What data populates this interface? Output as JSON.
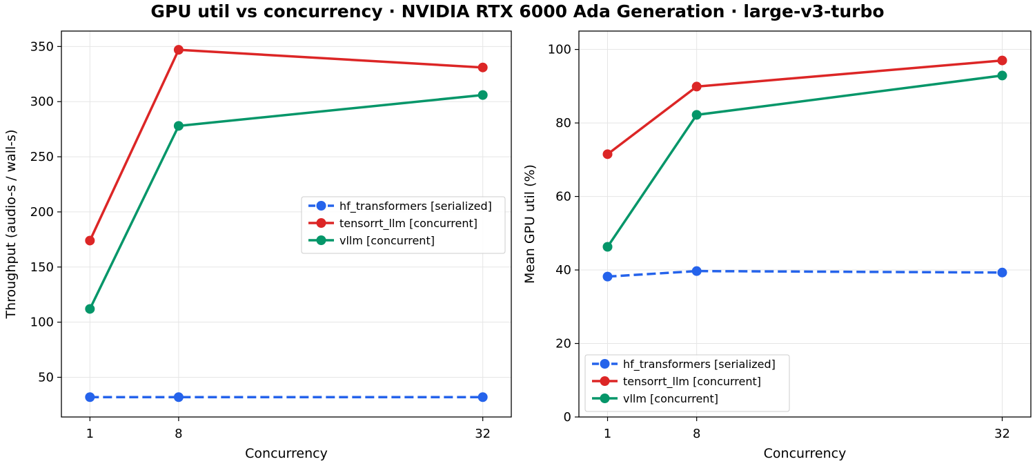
{
  "title": "GPU util vs concurrency · NVIDIA RTX 6000 Ada Generation · large-v3-turbo",
  "chart_data": [
    {
      "type": "line",
      "xlabel": "Concurrency",
      "ylabel": "Throughput (audio-s / wall-s)",
      "x": [
        1,
        8,
        32
      ],
      "xticks": [
        1,
        8,
        32
      ],
      "xlim": [
        -1.25,
        34.25
      ],
      "ylim": [
        14,
        364
      ],
      "yticks": [
        50,
        100,
        150,
        200,
        250,
        300,
        350
      ],
      "grid": true,
      "legend_position": "center-right",
      "series": [
        {
          "name": "hf_transformers [serialized]",
          "color": "#2563eb",
          "dashed": true,
          "values": [
            32,
            32,
            32
          ]
        },
        {
          "name": "tensorrt_llm [concurrent]",
          "color": "#dc2626",
          "dashed": false,
          "values": [
            174,
            347,
            331
          ]
        },
        {
          "name": "vllm [concurrent]",
          "color": "#059669",
          "dashed": false,
          "values": [
            112,
            278,
            306
          ]
        }
      ]
    },
    {
      "type": "line",
      "xlabel": "Concurrency",
      "ylabel": "Mean GPU util (%)",
      "x": [
        1,
        8,
        32
      ],
      "xticks": [
        1,
        8,
        32
      ],
      "xlim": [
        -1.25,
        34.25
      ],
      "ylim": [
        0,
        105
      ],
      "yticks": [
        0,
        20,
        40,
        60,
        80,
        100
      ],
      "grid": true,
      "legend_position": "lower-left",
      "series": [
        {
          "name": "hf_transformers [serialized]",
          "color": "#2563eb",
          "dashed": true,
          "values": [
            38.2,
            39.7,
            39.3
          ]
        },
        {
          "name": "tensorrt_llm [concurrent]",
          "color": "#dc2626",
          "dashed": false,
          "values": [
            71.5,
            89.9,
            97.0
          ]
        },
        {
          "name": "vllm [concurrent]",
          "color": "#059669",
          "dashed": false,
          "values": [
            46.3,
            82.2,
            92.9
          ]
        }
      ]
    }
  ]
}
